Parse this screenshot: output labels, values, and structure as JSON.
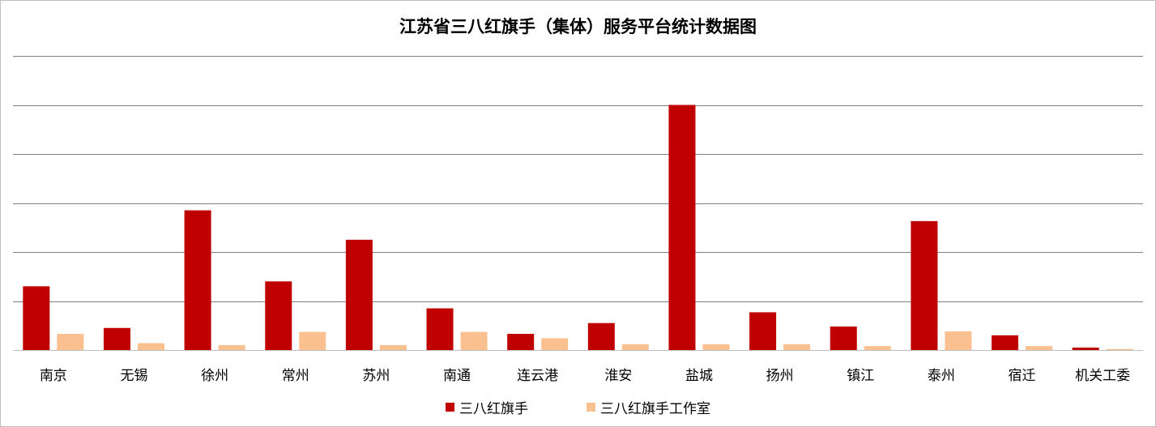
{
  "chart_data": {
    "type": "bar",
    "title": "江苏省三八红旗手（集体）服务平台统计数据图",
    "categories": [
      "南京",
      "无锡",
      "徐州",
      "常州",
      "苏州",
      "南通",
      "连云港",
      "淮安",
      "盐城",
      "扬州",
      "镇江",
      "泰州",
      "宿迁",
      "机关工委"
    ],
    "series": [
      {
        "name": "三八红旗手",
        "color": "#c00000",
        "values": [
          13,
          4.5,
          28.5,
          14,
          22.5,
          8.5,
          3.3,
          5.5,
          50,
          7.7,
          4.8,
          26.3,
          3,
          0.5
        ]
      },
      {
        "name": "三八红旗手工作室",
        "color": "#fac090",
        "values": [
          3.3,
          1.4,
          1,
          3.7,
          1,
          3.7,
          2.4,
          1.2,
          1.2,
          1.2,
          0.8,
          3.8,
          0.8,
          0.2
        ]
      }
    ],
    "ylim": [
      0,
      60
    ],
    "ytick_step": 10,
    "grid": true,
    "legend_position": "bottom"
  }
}
